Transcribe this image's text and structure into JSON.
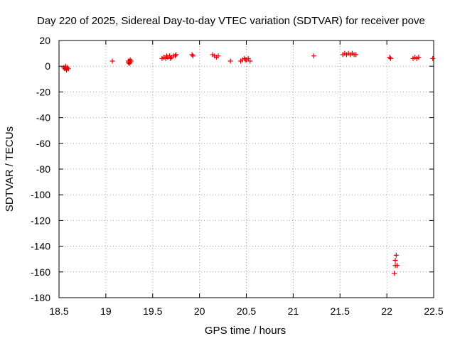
{
  "chart_data": {
    "type": "scatter",
    "title": "Day 220 of 2025, Sidereal Day-to-day VTEC variation (SDTVAR) for receiver pove",
    "xlabel": "GPS time / hours",
    "ylabel": "SDTVAR / TECUs",
    "xlim": [
      18.5,
      22.5
    ],
    "ylim": [
      -180,
      20
    ],
    "x_ticks": [
      18.5,
      19,
      19.5,
      20,
      20.5,
      21,
      21.5,
      22,
      22.5
    ],
    "x_tick_labels": [
      "18.5",
      "19",
      "19.5",
      "20",
      "20.5",
      "21",
      "21.5",
      "22",
      "22.5"
    ],
    "y_ticks": [
      20,
      0,
      -20,
      -40,
      -60,
      -80,
      -100,
      -120,
      -140,
      -160,
      -180
    ],
    "y_tick_labels": [
      "20",
      "0",
      "-20",
      "-40",
      "-60",
      "-80",
      "-100",
      "-120",
      "-140",
      "-160",
      "-180"
    ],
    "grid": true,
    "marker": "+",
    "marker_color": "#e00000",
    "series": [
      {
        "name": "SDTVAR",
        "x": [
          18.55,
          18.56,
          18.57,
          18.58,
          18.59,
          18.6,
          18.57,
          18.58,
          19.07,
          19.24,
          19.25,
          19.26,
          19.27,
          19.25,
          19.26,
          19.24,
          19.6,
          19.62,
          19.64,
          19.66,
          19.68,
          19.7,
          19.72,
          19.74,
          19.75,
          19.65,
          19.69,
          19.92,
          19.93,
          20.14,
          20.16,
          20.18,
          20.2,
          20.33,
          20.44,
          20.46,
          20.48,
          20.5,
          20.52,
          20.54,
          20.49,
          21.22,
          21.53,
          21.55,
          21.57,
          21.59,
          21.61,
          21.63,
          21.65,
          21.67,
          22.03,
          22.04,
          22.08,
          22.09,
          22.09,
          22.1,
          22.11,
          22.28,
          22.3,
          22.32,
          22.34,
          22.49
        ],
        "y": [
          -1,
          -2,
          0,
          -3,
          -1,
          -2,
          -1,
          -3,
          4,
          3,
          4,
          5,
          4,
          2,
          3,
          4,
          6,
          7,
          6,
          7,
          8,
          7,
          8,
          8,
          9,
          8,
          6,
          9,
          8,
          9,
          8,
          7,
          8,
          4,
          4,
          5,
          6,
          5,
          6,
          4,
          5,
          8,
          9,
          10,
          9,
          10,
          9,
          10,
          9,
          9,
          7,
          6,
          -161,
          -155,
          -151,
          -147,
          -155,
          6,
          7,
          6,
          7,
          6
        ]
      }
    ]
  }
}
